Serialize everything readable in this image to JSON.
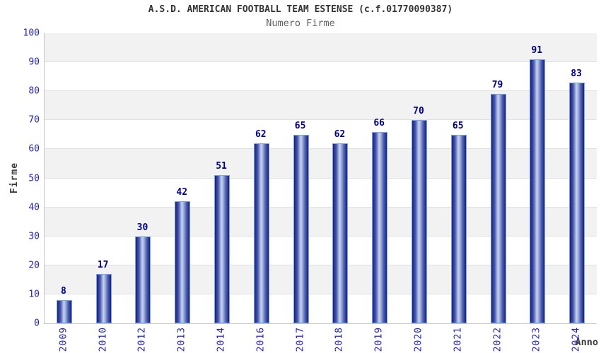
{
  "header": {
    "title": "A.S.D. AMERICAN FOOTBALL TEAM ESTENSE (c.f.01770090387)",
    "subtitle": "Numero Firme"
  },
  "chart_data": {
    "type": "bar",
    "title": "A.S.D. AMERICAN FOOTBALL TEAM ESTENSE (c.f.01770090387)",
    "subtitle": "Numero Firme",
    "categories": [
      "2009",
      "2010",
      "2012",
      "2013",
      "2014",
      "2016",
      "2017",
      "2018",
      "2019",
      "2020",
      "2021",
      "2022",
      "2023",
      "2024"
    ],
    "values": [
      8,
      17,
      30,
      42,
      51,
      62,
      65,
      62,
      66,
      70,
      65,
      79,
      91,
      83
    ],
    "xlabel": "Anno",
    "ylabel": "Firme",
    "ylim": [
      0,
      100
    ],
    "ytick_step": 10,
    "yticks": [
      0,
      10,
      20,
      30,
      40,
      50,
      60,
      70,
      80,
      90,
      100
    ],
    "grid": true,
    "alternating_bands": true,
    "legend": "none",
    "bar_labels_shown": true
  },
  "colors": {
    "tick_label": "#2222cc",
    "value_label": "#00008b",
    "title": "#333333",
    "subtitle": "#606060",
    "axis_title": "#3d3d3d",
    "band_gray": "#f2f2f2",
    "gridline": "#e0e0e0",
    "axis_line": "#c8c8c8",
    "bar_border": "#74a6e8",
    "bar_dark": "#1b1b7c",
    "bar_mid": "#4a5caf",
    "bar_light": "#c6d2ee"
  }
}
